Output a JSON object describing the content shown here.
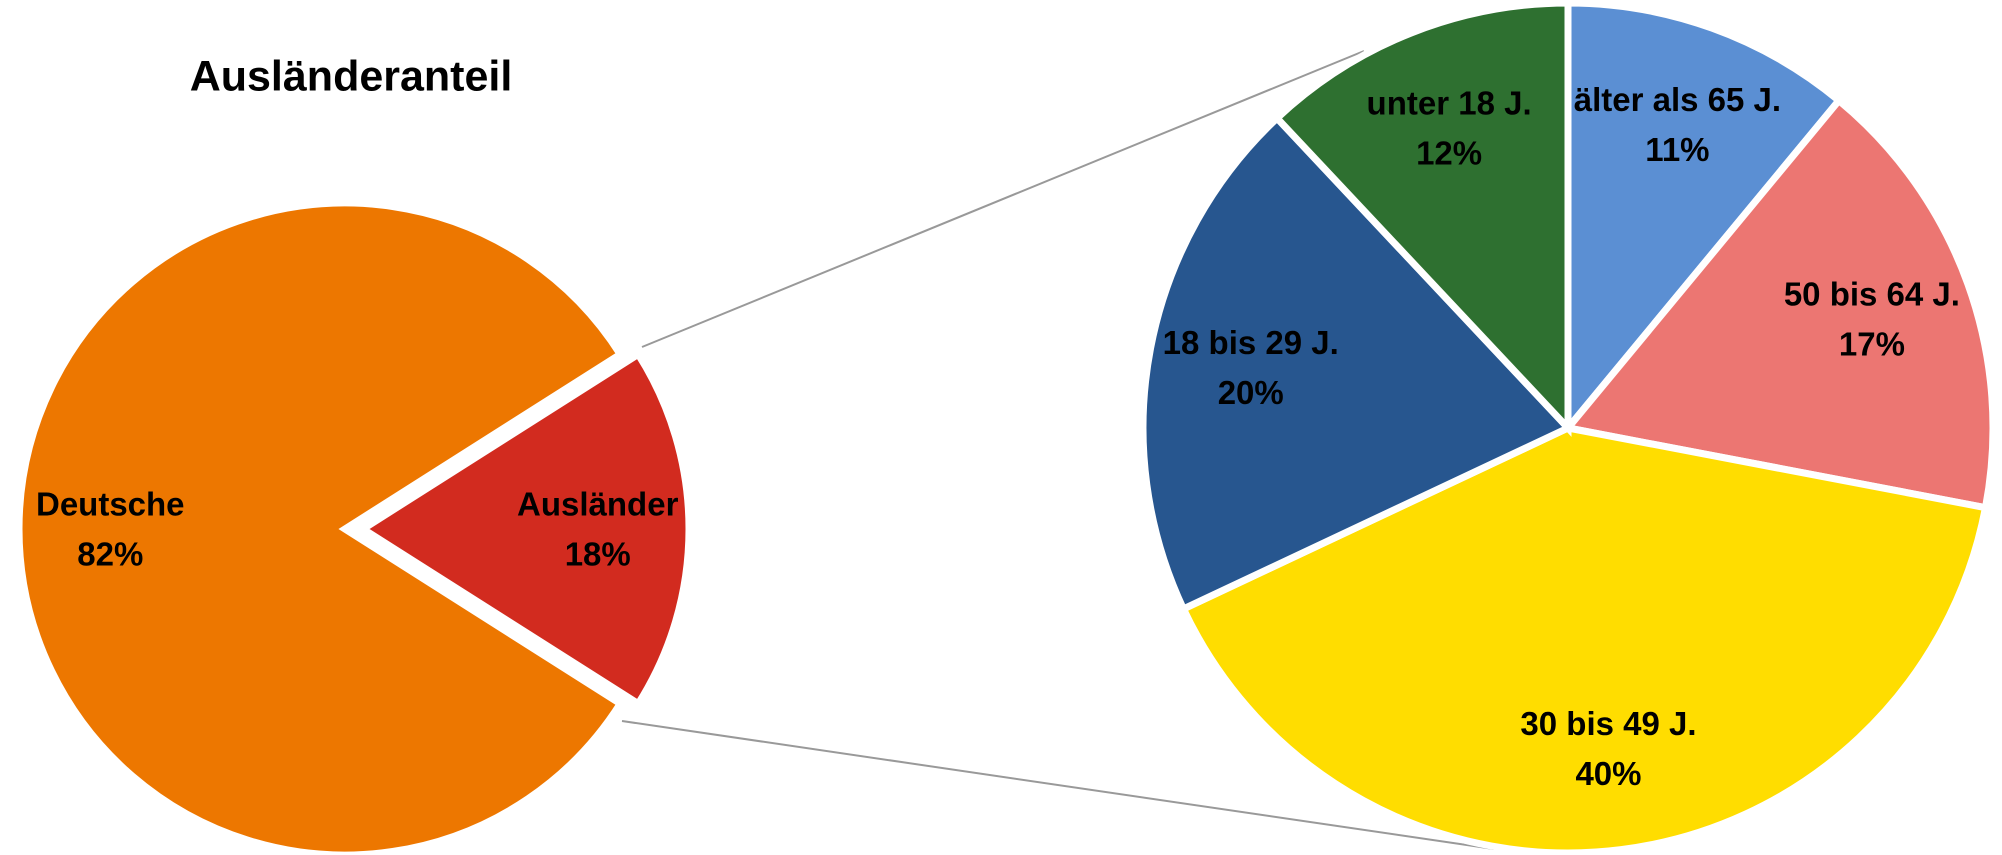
{
  "chart_data": [
    {
      "type": "pie",
      "title": "Ausländeranteil",
      "categories": [
        "Deutsche",
        "Ausländer"
      ],
      "values": [
        82,
        18
      ],
      "value_labels": [
        "82%",
        "18%"
      ],
      "colors": [
        "#ED7700",
        "#D22B1F"
      ]
    },
    {
      "type": "pie",
      "categories": [
        "älter als 65 J.",
        "50 bis 64 J.",
        "30 bis 49 J.",
        "18 bis 29 J.",
        "unter 18 J."
      ],
      "values": [
        11,
        17,
        40,
        20,
        12
      ],
      "value_labels": [
        "11%",
        "17%",
        "40%",
        "20%",
        "12%"
      ],
      "colors": [
        "#5B8FD3",
        "#EC7672",
        "#FFDD00",
        "#27568F",
        "#2E7030"
      ]
    }
  ]
}
